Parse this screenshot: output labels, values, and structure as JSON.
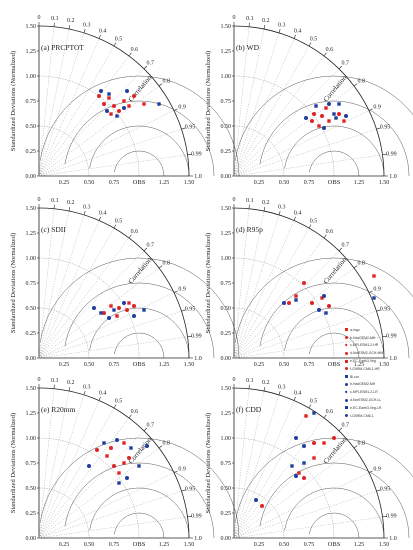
{
  "colors": {
    "red": "#e02424",
    "blue": "#1f3e9e",
    "grid": "#888888"
  },
  "labels": {
    "std_axis": "Standardized Deviations (Normalized)",
    "correlation": "Correlation",
    "obs": "OBS"
  },
  "ticks": {
    "std": [
      "0.00",
      "0.25",
      "0.50",
      "0.75",
      "1.00",
      "1.25",
      "1.50"
    ],
    "std_x": [
      "0.25",
      "0.50",
      "0.75",
      "1.25",
      "1.50"
    ],
    "corr": [
      "0",
      "0.1",
      "0.2",
      "0.3",
      "0.4",
      "0.5",
      "0.6",
      "0.7",
      "0.8",
      "0.9",
      "0.95",
      "0.99",
      "1.0"
    ]
  },
  "legend": [
    {
      "label": "a-Ingo",
      "color": "red",
      "marker": "square"
    },
    {
      "label": "b-HadGEM2-MH",
      "color": "red",
      "marker": "circle"
    },
    {
      "label": "c-MPI-ESM1-2-HR",
      "color": "red",
      "marker": "diamond"
    },
    {
      "label": "d-NorESM2-GCH-MM",
      "color": "red",
      "marker": "circle"
    },
    {
      "label": "e-EC-Earth3-Veg",
      "color": "red",
      "marker": "square"
    },
    {
      "label": "f-CNRM-CM6-1-HR",
      "color": "red",
      "marker": "circle"
    },
    {
      "label": "Bi-cor",
      "color": "blue",
      "marker": "square"
    },
    {
      "label": "b-HadGEM2-MH",
      "color": "blue",
      "marker": "circle"
    },
    {
      "label": "c-MPI-ESM1-2-LR",
      "color": "blue",
      "marker": "diamond"
    },
    {
      "label": "d-NorESM2-GCH-LL",
      "color": "blue",
      "marker": "circle"
    },
    {
      "label": "e-EC-Earth3-Veg-LR",
      "color": "blue",
      "marker": "square"
    },
    {
      "label": "f-CNRM-CM6-1",
      "color": "blue",
      "marker": "circle"
    }
  ],
  "chart_data": [
    {
      "type": "scatter",
      "title": "(a) PRCPTOT",
      "xlim": [
        0,
        1.5
      ],
      "ylim": [
        0,
        1.5
      ],
      "grid": true,
      "series": [
        {
          "color": "red",
          "points": [
            [
              0.6,
              0.8
            ],
            [
              0.7,
              0.78
            ],
            [
              0.75,
              0.7
            ],
            [
              0.85,
              0.75
            ],
            [
              0.95,
              0.8
            ],
            [
              0.72,
              0.62
            ],
            [
              0.8,
              0.65
            ],
            [
              1.05,
              0.72
            ],
            [
              0.65,
              0.72
            ],
            [
              0.9,
              0.7
            ]
          ]
        },
        {
          "color": "blue",
          "points": [
            [
              0.62,
              0.85
            ],
            [
              0.7,
              0.82
            ],
            [
              0.88,
              0.85
            ],
            [
              0.78,
              0.6
            ],
            [
              0.85,
              0.68
            ],
            [
              1.2,
              0.72
            ],
            [
              0.68,
              0.65
            ]
          ]
        }
      ]
    },
    {
      "type": "scatter",
      "title": "(b) WD",
      "xlim": [
        0,
        1.5
      ],
      "ylim": [
        0,
        1.5
      ],
      "grid": true,
      "series": [
        {
          "color": "red",
          "points": [
            [
              0.78,
              0.55
            ],
            [
              0.85,
              0.5
            ],
            [
              0.88,
              0.6
            ],
            [
              0.95,
              0.55
            ],
            [
              1.05,
              0.62
            ],
            [
              1.1,
              0.55
            ],
            [
              0.8,
              0.62
            ],
            [
              0.92,
              0.68
            ]
          ]
        },
        {
          "color": "blue",
          "points": [
            [
              0.72,
              0.58
            ],
            [
              0.82,
              0.7
            ],
            [
              0.95,
              0.72
            ],
            [
              1.05,
              0.72
            ],
            [
              0.9,
              0.48
            ],
            [
              1.0,
              0.62
            ],
            [
              1.12,
              0.6
            ],
            [
              1.02,
              0.58
            ]
          ]
        }
      ]
    },
    {
      "type": "scatter",
      "title": "(c) SDII",
      "xlim": [
        0,
        1.5
      ],
      "ylim": [
        0,
        1.5
      ],
      "grid": true,
      "series": [
        {
          "color": "red",
          "points": [
            [
              0.65,
              0.45
            ],
            [
              0.72,
              0.52
            ],
            [
              0.8,
              0.5
            ],
            [
              0.9,
              0.55
            ],
            [
              0.95,
              0.52
            ],
            [
              0.78,
              0.42
            ],
            [
              0.88,
              0.48
            ]
          ]
        },
        {
          "color": "blue",
          "points": [
            [
              0.55,
              0.5
            ],
            [
              0.62,
              0.45
            ],
            [
              0.7,
              0.4
            ],
            [
              0.75,
              0.48
            ],
            [
              0.95,
              0.42
            ],
            [
              1.05,
              0.48
            ],
            [
              0.85,
              0.55
            ]
          ]
        }
      ]
    },
    {
      "type": "scatter",
      "title": "(d) R95p",
      "xlim": [
        0,
        1.5
      ],
      "ylim": [
        0,
        1.5
      ],
      "grid": true,
      "series": [
        {
          "color": "red",
          "points": [
            [
              0.55,
              0.55
            ],
            [
              0.62,
              0.62
            ],
            [
              0.7,
              0.75
            ],
            [
              0.88,
              0.6
            ],
            [
              0.95,
              0.52
            ],
            [
              1.4,
              0.82
            ],
            [
              0.78,
              0.55
            ]
          ]
        },
        {
          "color": "blue",
          "points": [
            [
              0.5,
              0.55
            ],
            [
              0.62,
              0.58
            ],
            [
              0.85,
              0.48
            ],
            [
              0.92,
              0.45
            ],
            [
              0.9,
              0.62
            ],
            [
              1.4,
              0.6
            ]
          ]
        }
      ]
    },
    {
      "type": "scatter",
      "title": "(e) R20mm",
      "xlim": [
        0,
        1.5
      ],
      "ylim": [
        0,
        1.5
      ],
      "grid": true,
      "series": [
        {
          "color": "red",
          "points": [
            [
              0.58,
              0.88
            ],
            [
              0.68,
              0.82
            ],
            [
              0.75,
              0.72
            ],
            [
              0.85,
              0.75
            ],
            [
              0.9,
              0.8
            ],
            [
              0.8,
              0.65
            ],
            [
              0.72,
              0.9
            ],
            [
              0.85,
              0.95
            ]
          ]
        },
        {
          "color": "blue",
          "points": [
            [
              0.5,
              0.72
            ],
            [
              0.65,
              0.95
            ],
            [
              0.78,
              0.98
            ],
            [
              0.92,
              0.9
            ],
            [
              1.08,
              0.92
            ],
            [
              1.0,
              0.72
            ],
            [
              0.88,
              0.6
            ],
            [
              0.8,
              0.55
            ]
          ]
        }
      ]
    },
    {
      "type": "scatter",
      "title": "(f) CDD",
      "xlim": [
        0,
        1.5
      ],
      "ylim": [
        0,
        1.5
      ],
      "grid": true,
      "series": [
        {
          "color": "red",
          "points": [
            [
              0.28,
              0.32
            ],
            [
              0.65,
              0.65
            ],
            [
              0.7,
              0.6
            ],
            [
              0.8,
              0.8
            ],
            [
              0.8,
              0.95
            ],
            [
              0.9,
              0.95
            ],
            [
              1.0,
              1.0
            ],
            [
              0.72,
              1.22
            ]
          ]
        },
        {
          "color": "blue",
          "points": [
            [
              0.22,
              0.38
            ],
            [
              0.58,
              0.72
            ],
            [
              0.62,
              0.62
            ],
            [
              0.7,
              0.75
            ],
            [
              0.7,
              0.92
            ],
            [
              0.8,
              1.25
            ],
            [
              0.62,
              1.0
            ]
          ]
        }
      ]
    }
  ]
}
